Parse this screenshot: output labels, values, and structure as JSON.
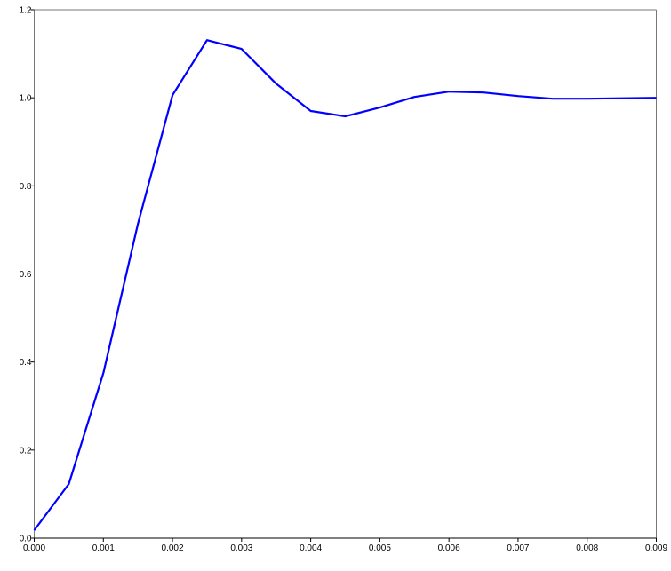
{
  "chart_data": {
    "type": "line",
    "title": "",
    "xlabel": "",
    "ylabel": "",
    "xlim": [
      0,
      0.009
    ],
    "ylim": [
      0,
      1.2
    ],
    "grid": false,
    "xticks": [
      "0.000",
      "0.001",
      "0.002",
      "0.003",
      "0.004",
      "0.005",
      "0.006",
      "0.007",
      "0.008",
      "0.009"
    ],
    "yticks": [
      "0.0",
      "0.2",
      "0.4",
      "0.6",
      "0.8",
      "1.0",
      "1.2"
    ],
    "series": [
      {
        "color": "#0000ff",
        "x": [
          0,
          0.0005,
          0.001,
          0.0015,
          0.002,
          0.0025,
          0.003,
          0.0035,
          0.004,
          0.0045,
          0.005,
          0.0055,
          0.006,
          0.0065,
          0.007,
          0.0075,
          0.008,
          0.0085,
          0.009
        ],
        "y": [
          0.018,
          0.123,
          0.375,
          0.714,
          1.006,
          1.131,
          1.111,
          1.032,
          0.97,
          0.958,
          0.978,
          1.002,
          1.014,
          1.012,
          1.004,
          0.998,
          0.998,
          0.999,
          1.0
        ]
      }
    ]
  }
}
